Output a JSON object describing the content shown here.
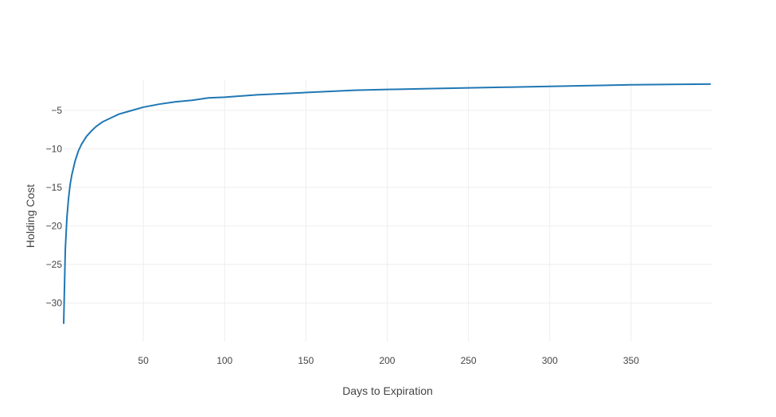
{
  "chart_data": {
    "type": "line",
    "title": "",
    "xlabel": "Days to Expiration",
    "ylabel": "Holding Cost",
    "xlim": [
      1,
      400
    ],
    "ylim": [
      -35,
      -1
    ],
    "xticks": [
      50,
      100,
      150,
      200,
      250,
      300,
      350
    ],
    "yticks": [
      -5,
      -10,
      -15,
      -20,
      -25,
      -30
    ],
    "grid": true,
    "legend": "none",
    "colors": {
      "line": "#1f77b4",
      "grid": "#eeeeee",
      "text": "#444444"
    },
    "series": [
      {
        "x": [
          1,
          2,
          3,
          4,
          5,
          6,
          8,
          10,
          12,
          15,
          18,
          21,
          25,
          30,
          35,
          40,
          50,
          60,
          70,
          80,
          90,
          100,
          120,
          140,
          160,
          180,
          200,
          225,
          250,
          275,
          300,
          325,
          350,
          375,
          399
        ],
        "y": [
          -32.7,
          -23.1,
          -18.9,
          -16.4,
          -14.6,
          -13.4,
          -11.6,
          -10.3,
          -9.4,
          -8.4,
          -7.7,
          -7.1,
          -6.5,
          -6.0,
          -5.5,
          -5.2,
          -4.6,
          -4.2,
          -3.9,
          -3.7,
          -3.4,
          -3.3,
          -3.0,
          -2.8,
          -2.6,
          -2.4,
          -2.3,
          -2.2,
          -2.1,
          -2.0,
          -1.9,
          -1.8,
          -1.7,
          -1.65,
          -1.6
        ]
      }
    ]
  }
}
